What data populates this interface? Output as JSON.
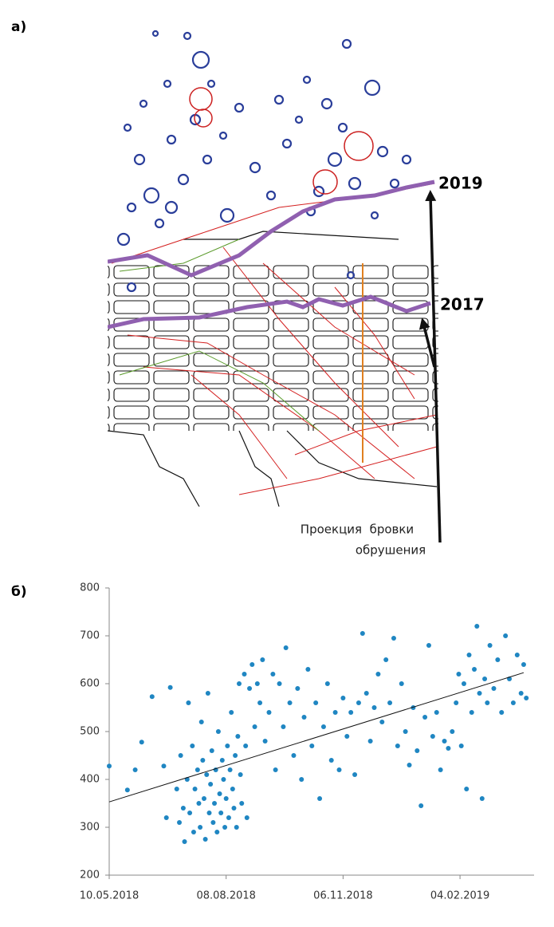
{
  "panel_a": {
    "label": "а)",
    "marker_labels": [
      "2019",
      "2017"
    ],
    "caption": [
      "Проекция  бровки",
      "обрушения"
    ]
  },
  "panel_b": {
    "label": "б)"
  },
  "chart_data": {
    "type": "scatter",
    "color": "#1f86c2",
    "x": [
      "10.05.2018",
      "24.05.2018",
      "30.05.2018",
      "04.06.2018",
      "12.06.2018",
      "21.06.2018",
      "23.06.2018",
      "26.06.2018",
      "01.07.2018",
      "03.07.2018",
      "04.07.2018",
      "06.07.2018",
      "07.07.2018",
      "09.07.2018",
      "10.07.2018",
      "11.07.2018",
      "13.07.2018",
      "14.07.2018",
      "15.07.2018",
      "17.07.2018",
      "18.07.2018",
      "19.07.2018",
      "20.07.2018",
      "21.07.2018",
      "22.07.2018",
      "23.07.2018",
      "24.07.2018",
      "25.07.2018",
      "26.07.2018",
      "27.07.2018",
      "28.07.2018",
      "29.07.2018",
      "30.07.2018",
      "31.07.2018",
      "01.08.2018",
      "02.08.2018",
      "03.08.2018",
      "04.08.2018",
      "05.08.2018",
      "06.08.2018",
      "07.08.2018",
      "08.08.2018",
      "09.08.2018",
      "10.08.2018",
      "11.08.2018",
      "12.08.2018",
      "13.08.2018",
      "14.08.2018",
      "15.08.2018",
      "16.08.2018",
      "17.08.2018",
      "18.08.2018",
      "19.08.2018",
      "20.08.2018",
      "22.08.2018",
      "23.08.2018",
      "24.08.2018",
      "26.08.2018",
      "28.08.2018",
      "30.08.2018",
      "01.09.2018",
      "03.09.2018",
      "05.09.2018",
      "07.09.2018",
      "10.09.2018",
      "13.09.2018",
      "15.09.2018",
      "18.09.2018",
      "21.09.2018",
      "23.09.2018",
      "26.09.2018",
      "29.09.2018",
      "02.10.2018",
      "05.10.2018",
      "07.10.2018",
      "10.10.2018",
      "13.10.2018",
      "16.10.2018",
      "19.10.2018",
      "22.10.2018",
      "25.10.2018",
      "28.10.2018",
      "31.10.2018",
      "03.11.2018",
      "06.11.2018",
      "09.11.2018",
      "12.11.2018",
      "15.11.2018",
      "18.11.2018",
      "21.11.2018",
      "24.11.2018",
      "27.11.2018",
      "30.11.2018",
      "03.12.2018",
      "06.12.2018",
      "09.12.2018",
      "12.12.2018",
      "15.12.2018",
      "18.12.2018",
      "21.12.2018",
      "24.12.2018",
      "27.12.2018",
      "30.12.2018",
      "02.01.2019",
      "05.01.2019",
      "08.01.2019",
      "11.01.2019",
      "14.01.2019",
      "17.01.2019",
      "20.01.2019",
      "23.01.2019",
      "26.01.2019",
      "29.01.2019",
      "01.02.2019",
      "03.02.2019",
      "05.02.2019",
      "07.02.2019",
      "09.02.2019",
      "11.02.2019",
      "13.02.2019",
      "15.02.2019",
      "17.02.2019",
      "19.02.2019",
      "21.02.2019",
      "23.02.2019",
      "25.02.2019",
      "27.02.2019",
      "02.03.2019",
      "05.03.2019",
      "08.03.2019",
      "11.03.2019",
      "14.03.2019",
      "17.03.2019",
      "20.03.2019",
      "23.03.2019",
      "25.03.2019",
      "27.03.2019"
    ],
    "values": [
      428,
      378,
      420,
      478,
      573,
      428,
      320,
      592,
      380,
      310,
      450,
      340,
      270,
      400,
      560,
      330,
      470,
      290,
      380,
      420,
      350,
      300,
      520,
      440,
      360,
      275,
      410,
      580,
      330,
      390,
      460,
      310,
      350,
      420,
      290,
      500,
      370,
      330,
      440,
      400,
      300,
      360,
      470,
      320,
      420,
      540,
      380,
      340,
      450,
      300,
      490,
      600,
      410,
      350,
      620,
      470,
      320,
      590,
      640,
      510,
      600,
      560,
      650,
      480,
      540,
      620,
      420,
      600,
      510,
      675,
      560,
      450,
      590,
      400,
      530,
      630,
      470,
      560,
      360,
      510,
      600,
      440,
      540,
      420,
      570,
      490,
      540,
      410,
      560,
      705,
      580,
      480,
      550,
      620,
      520,
      650,
      560,
      695,
      470,
      600,
      500,
      430,
      550,
      460,
      345,
      530,
      680,
      490,
      540,
      420,
      480,
      465,
      500,
      560,
      620,
      470,
      600,
      380,
      660,
      540,
      630,
      720,
      580,
      360,
      610,
      560,
      680,
      590,
      650,
      540,
      700,
      610,
      560,
      660,
      580,
      640,
      570
    ],
    "trend": {
      "x": [
        "10.05.2018",
        "25.03.2019"
      ],
      "values": [
        353,
        623
      ],
      "color": "#111111"
    },
    "xlim": [
      "10.05.2018",
      "02.04.2019"
    ],
    "xticks": [
      "10.05.2018",
      "08.08.2018",
      "06.11.2018",
      "04.02.2019"
    ],
    "ylim": [
      200,
      800
    ],
    "yticks": [
      200,
      300,
      400,
      500,
      600,
      700,
      800
    ]
  }
}
